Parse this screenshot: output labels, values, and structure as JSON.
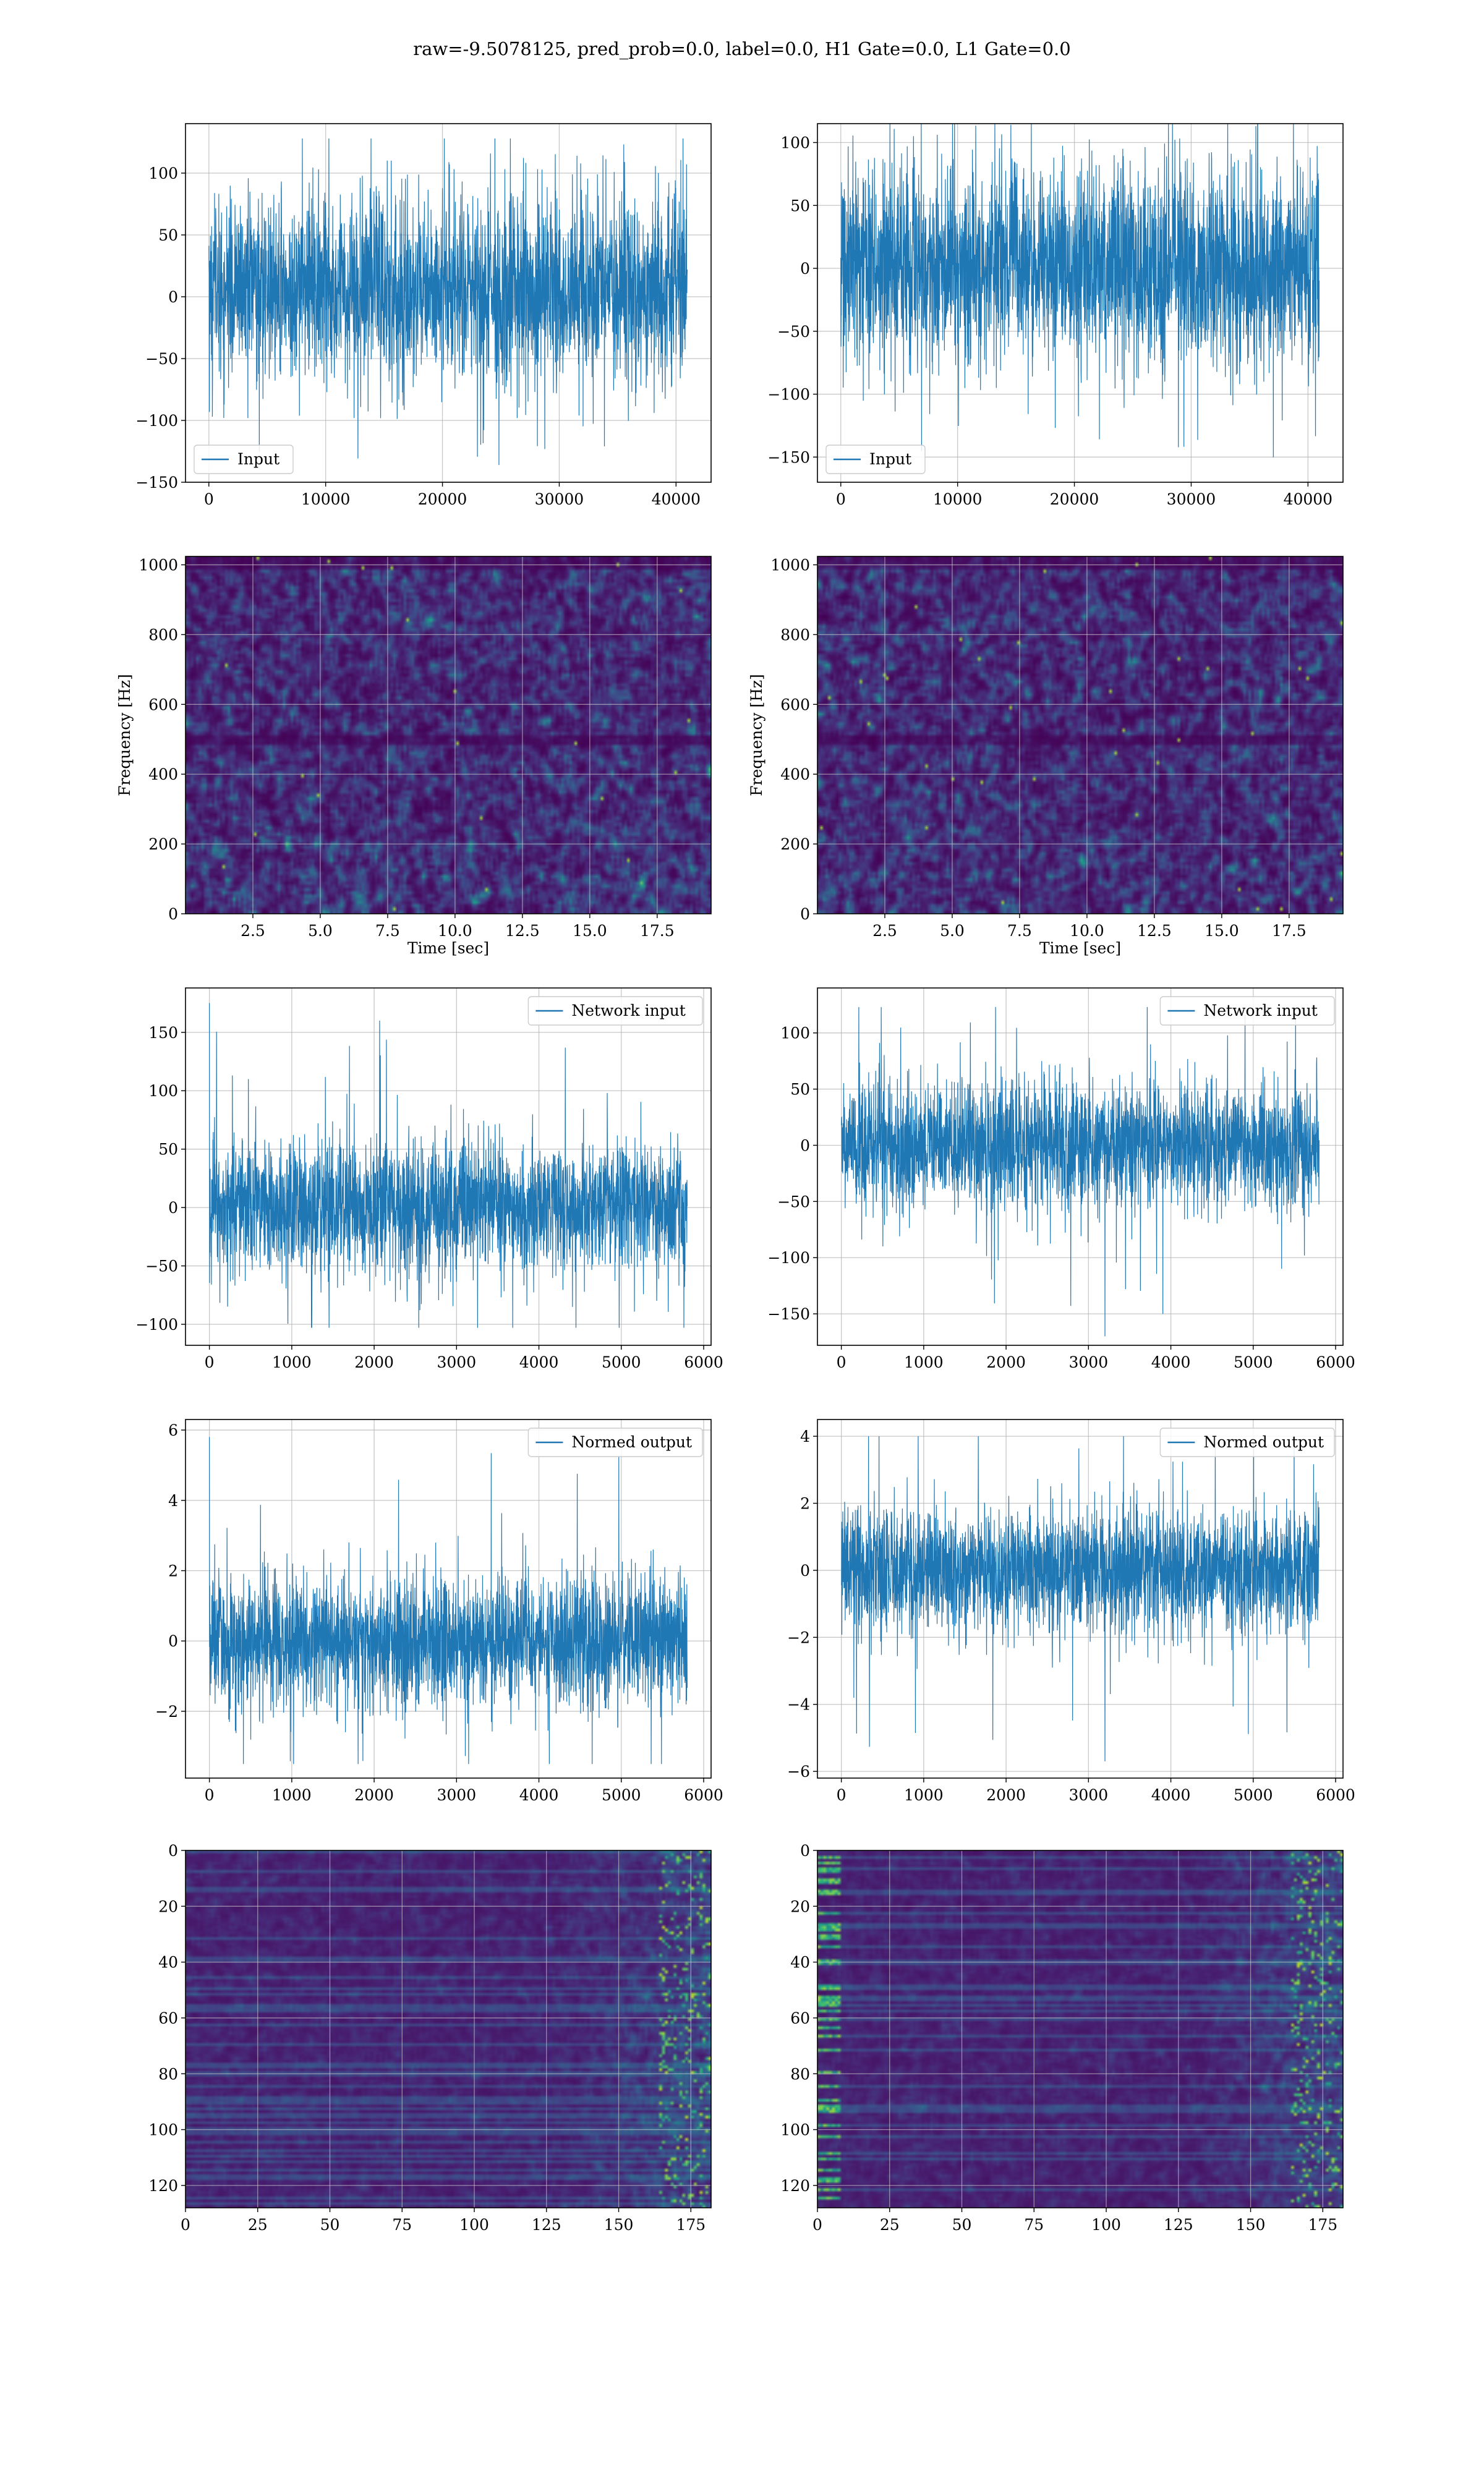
{
  "figure": {
    "title": "raw=-9.5078125, pred_prob=0.0, label=0.0, H1 Gate=0.0, L1 Gate=0.0"
  },
  "colors": {
    "line": "#1f77b4",
    "grid": "#b0b0b0",
    "axes": "#000000",
    "viridis": [
      "#440154",
      "#482475",
      "#414487",
      "#355f8d",
      "#2a788e",
      "#21918c",
      "#22a884",
      "#44bf70",
      "#7ad151",
      "#bddf26",
      "#fde725"
    ]
  },
  "chart_data": [
    {
      "id": "input-h1",
      "type": "line",
      "column": "left",
      "title": "",
      "xlabel": "",
      "ylabel": "",
      "xlim": [
        -2000,
        43000
      ],
      "ylim": [
        -150,
        140
      ],
      "xticks": [
        0,
        10000,
        20000,
        30000,
        40000
      ],
      "yticks": [
        -150,
        -100,
        -50,
        0,
        50,
        100
      ],
      "grid": true,
      "legend": {
        "label": "Input",
        "loc": "lower-left"
      },
      "series": [
        {
          "label": "Input",
          "x_range": [
            0,
            40960
          ],
          "samples": 40960,
          "band": [
            -55,
            65
          ],
          "y_min": -140,
          "y_max": 128
        }
      ]
    },
    {
      "id": "input-l1",
      "type": "line",
      "column": "right",
      "title": "",
      "xlabel": "",
      "ylabel": "",
      "xlim": [
        -2000,
        43000
      ],
      "ylim": [
        -170,
        115
      ],
      "xticks": [
        0,
        10000,
        20000,
        30000,
        40000
      ],
      "yticks": [
        -150,
        -100,
        -50,
        0,
        50,
        100
      ],
      "grid": true,
      "legend": {
        "label": "Input",
        "loc": "lower-left"
      },
      "series": [
        {
          "label": "Input",
          "x_range": [
            0,
            40960
          ],
          "samples": 40960,
          "band": [
            -62,
            65
          ],
          "y_min": -160,
          "y_max": 115
        }
      ]
    },
    {
      "id": "spectrogram-h1",
      "type": "heatmap",
      "column": "left",
      "title": "",
      "xlabel": "Time [sec]",
      "ylabel": "Frequency [Hz]",
      "xlim": [
        0,
        19.5
      ],
      "ylim": [
        0,
        1024
      ],
      "xticks": [
        2.5,
        5.0,
        7.5,
        10.0,
        12.5,
        15.0,
        17.5
      ],
      "xtick_labels": [
        "2.5",
        "5.0",
        "7.5",
        "10.0",
        "12.5",
        "15.0",
        "17.5"
      ],
      "yticks": [
        0,
        200,
        400,
        600,
        800,
        1000
      ],
      "grid": true,
      "colormap": "viridis",
      "y_origin": "bottom",
      "notes_bands": [
        {
          "y": 500,
          "level": "low"
        },
        {
          "y": 1000,
          "level": "low"
        }
      ]
    },
    {
      "id": "spectrogram-l1",
      "type": "heatmap",
      "column": "right",
      "title": "",
      "xlabel": "Time [sec]",
      "ylabel": "Frequency [Hz]",
      "xlim": [
        0,
        19.5
      ],
      "ylim": [
        0,
        1024
      ],
      "xticks": [
        2.5,
        5.0,
        7.5,
        10.0,
        12.5,
        15.0,
        17.5
      ],
      "xtick_labels": [
        "2.5",
        "5.0",
        "7.5",
        "10.0",
        "12.5",
        "15.0",
        "17.5"
      ],
      "yticks": [
        0,
        200,
        400,
        600,
        800,
        1000
      ],
      "grid": true,
      "colormap": "viridis",
      "y_origin": "bottom",
      "notes_bands": [
        {
          "y": 500,
          "level": "low"
        },
        {
          "y": 1000,
          "level": "low"
        }
      ]
    },
    {
      "id": "network-input-h1",
      "type": "line",
      "column": "left",
      "title": "",
      "xlabel": "",
      "ylabel": "",
      "xlim": [
        -290,
        6090
      ],
      "ylim": [
        -118,
        188
      ],
      "xticks": [
        0,
        1000,
        2000,
        3000,
        4000,
        5000,
        6000
      ],
      "yticks": [
        -100,
        -50,
        0,
        50,
        100,
        150
      ],
      "grid": true,
      "legend": {
        "label": "Network input",
        "loc": "upper-right"
      },
      "series": [
        {
          "label": "Network input",
          "x_range": [
            0,
            5800
          ],
          "samples": 5800,
          "band": [
            -45,
            45
          ],
          "y_min": -103,
          "y_max": 175,
          "spike_at_start": 175
        }
      ]
    },
    {
      "id": "network-input-l1",
      "type": "line",
      "column": "right",
      "title": "",
      "xlabel": "",
      "ylabel": "",
      "xlim": [
        -290,
        6090
      ],
      "ylim": [
        -178,
        140
      ],
      "xticks": [
        0,
        1000,
        2000,
        3000,
        4000,
        5000,
        6000
      ],
      "yticks": [
        -150,
        -100,
        -50,
        0,
        50,
        100
      ],
      "grid": true,
      "legend": {
        "label": "Network input",
        "loc": "upper-right"
      },
      "series": [
        {
          "label": "Network input",
          "x_range": [
            0,
            5800
          ],
          "samples": 5800,
          "band": [
            -45,
            45
          ],
          "y_min": -170,
          "y_max": 123,
          "spike_at": {
            "x": 3200,
            "y": -170
          }
        }
      ]
    },
    {
      "id": "normed-output-h1",
      "type": "line",
      "column": "left",
      "title": "",
      "xlabel": "",
      "ylabel": "",
      "xlim": [
        -290,
        6090
      ],
      "ylim": [
        -3.9,
        6.3
      ],
      "xticks": [
        0,
        1000,
        2000,
        3000,
        4000,
        5000,
        6000
      ],
      "yticks": [
        -2,
        0,
        2,
        4,
        6
      ],
      "grid": true,
      "legend": {
        "label": "Normed output",
        "loc": "upper-right"
      },
      "series": [
        {
          "label": "Normed output",
          "x_range": [
            0,
            5800
          ],
          "samples": 5800,
          "band": [
            -1.5,
            1.5
          ],
          "y_min": -3.5,
          "y_max": 5.8,
          "spike_at_start": 5.8
        }
      ]
    },
    {
      "id": "normed-output-l1",
      "type": "line",
      "column": "right",
      "title": "",
      "xlabel": "",
      "ylabel": "",
      "xlim": [
        -290,
        6090
      ],
      "ylim": [
        -6.2,
        4.5
      ],
      "xticks": [
        0,
        1000,
        2000,
        3000,
        4000,
        5000,
        6000
      ],
      "yticks": [
        -6,
        -4,
        -2,
        0,
        2,
        4
      ],
      "grid": true,
      "legend": {
        "label": "Normed output",
        "loc": "upper-right"
      },
      "series": [
        {
          "label": "Normed output",
          "x_range": [
            0,
            5800
          ],
          "samples": 5800,
          "band": [
            -1.5,
            1.5
          ],
          "y_min": -5.7,
          "y_max": 4.0,
          "spike_at": {
            "x": 3200,
            "y": -5.7
          }
        }
      ]
    },
    {
      "id": "feature-map-h1",
      "type": "heatmap",
      "column": "left",
      "title": "",
      "xlabel": "",
      "ylabel": "",
      "xlim": [
        0,
        182
      ],
      "ylim": [
        128,
        0
      ],
      "xticks": [
        0,
        25,
        50,
        75,
        100,
        125,
        150,
        175
      ],
      "yticks": [
        0,
        20,
        40,
        60,
        80,
        100,
        120
      ],
      "grid": true,
      "colormap": "viridis",
      "y_origin": "top",
      "rows": 128,
      "cols": 182,
      "hot_right_edge": true
    },
    {
      "id": "feature-map-l1",
      "type": "heatmap",
      "column": "right",
      "title": "",
      "xlabel": "",
      "ylabel": "",
      "xlim": [
        0,
        182
      ],
      "ylim": [
        128,
        0
      ],
      "xticks": [
        0,
        25,
        50,
        75,
        100,
        125,
        150,
        175
      ],
      "yticks": [
        0,
        20,
        40,
        60,
        80,
        100,
        120
      ],
      "grid": true,
      "colormap": "viridis",
      "y_origin": "top",
      "rows": 128,
      "cols": 182,
      "hot_right_edge": true,
      "hot_left_edge": true
    }
  ]
}
